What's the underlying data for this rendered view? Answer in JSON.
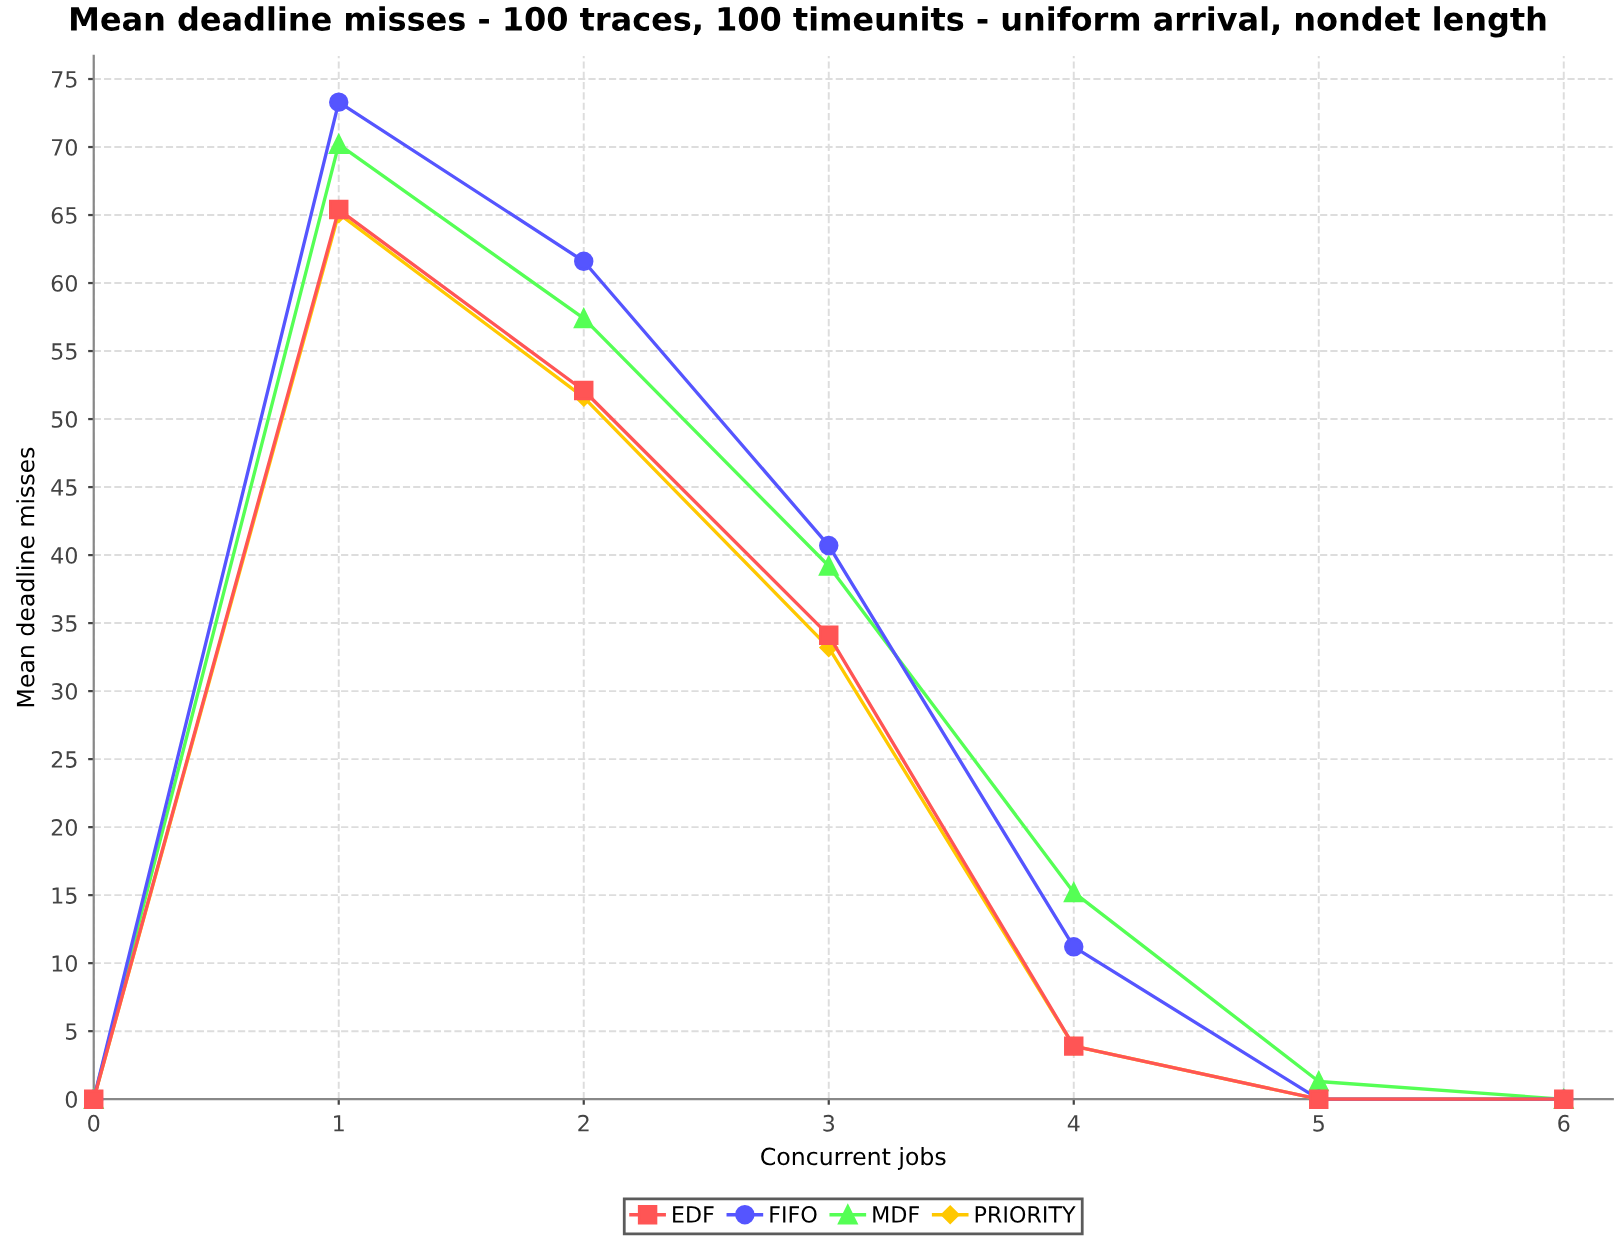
{
  "chart_data": {
    "type": "line",
    "title": "Mean deadline misses - 100 traces, 100 timeunits - uniform arrival, nondet length",
    "xlabel": "Concurrent jobs",
    "ylabel": "Mean deadline misses",
    "x": [
      0,
      1,
      2,
      3,
      4,
      5,
      6
    ],
    "series": [
      {
        "name": "EDF",
        "color": "#ff5555",
        "marker": "square",
        "values": [
          0,
          65.4,
          52.1,
          34.1,
          3.9,
          0,
          0
        ]
      },
      {
        "name": "FIFO",
        "color": "#5555ff",
        "marker": "circle",
        "values": [
          0,
          73.3,
          61.6,
          40.7,
          11.2,
          0,
          0
        ]
      },
      {
        "name": "MDF",
        "color": "#55ff55",
        "marker": "triangle",
        "values": [
          0,
          70.2,
          57.4,
          39.2,
          15.2,
          1.3,
          0
        ]
      },
      {
        "name": "PRIORITY",
        "color": "#ffc800",
        "marker": "diamond",
        "values": [
          0,
          65.1,
          51.6,
          33.2,
          3.9,
          0,
          0
        ]
      }
    ],
    "xlim": [
      0,
      6.2
    ],
    "xticks": [
      0,
      1,
      2,
      3,
      4,
      5,
      6
    ],
    "ylim": [
      0,
      76.7
    ],
    "yticks": [
      0,
      5,
      10,
      15,
      20,
      25,
      30,
      35,
      40,
      45,
      50,
      55,
      60,
      65,
      70,
      75
    ],
    "grid": true,
    "legend": "bottom",
    "line_style": "solid"
  }
}
